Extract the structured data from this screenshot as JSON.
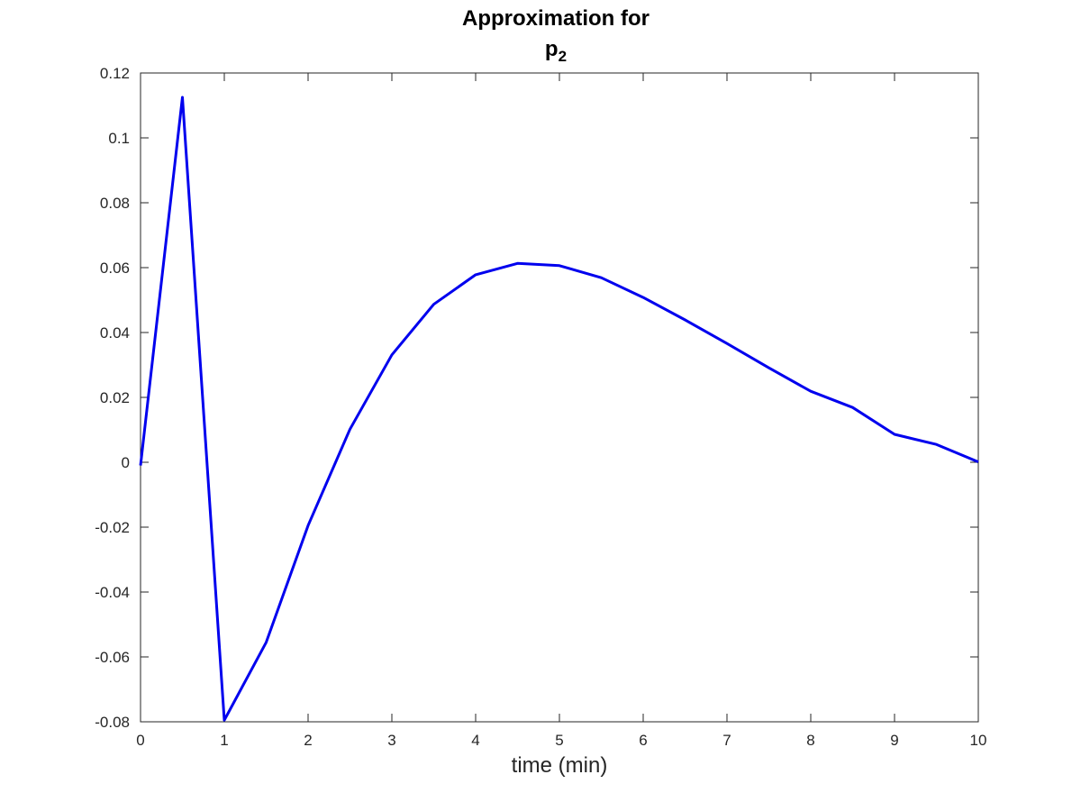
{
  "chart_data": {
    "type": "line",
    "title_main": "Approximation for",
    "title_symbol": "p",
    "title_subscript": "2",
    "xlabel": "time (min)",
    "ylabel": "",
    "xlim": [
      0,
      10
    ],
    "ylim": [
      -0.08,
      0.12
    ],
    "x_ticks": [
      0,
      1,
      2,
      3,
      4,
      5,
      6,
      7,
      8,
      9,
      10
    ],
    "x_tick_labels": [
      "0",
      "1",
      "2",
      "3",
      "4",
      "5",
      "6",
      "7",
      "8",
      "9",
      "10"
    ],
    "y_ticks": [
      -0.08,
      -0.06,
      -0.04,
      -0.02,
      0,
      0.02,
      0.04,
      0.06,
      0.08,
      0.1,
      0.12
    ],
    "y_tick_labels": [
      "-0.08",
      "-0.06",
      "-0.04",
      "-0.02",
      "0",
      "0.02",
      "0.04",
      "0.06",
      "0.08",
      "0.1",
      "0.12"
    ],
    "grid": false,
    "series": [
      {
        "color": "#0000ee",
        "x": [
          0,
          0.5,
          1,
          1.5,
          2,
          2.5,
          3,
          3.5,
          4,
          4.5,
          5,
          5.5,
          6,
          6.5,
          7,
          7.5,
          8,
          8.5,
          9,
          9.5,
          10
        ],
        "y": [
          -0.001,
          0.1125,
          -0.0795,
          -0.0555,
          -0.0195,
          0.0102,
          0.0331,
          0.0487,
          0.0578,
          0.0613,
          0.0606,
          0.0569,
          0.0508,
          0.0439,
          0.0366,
          0.0291,
          0.0219,
          0.0169,
          0.0086,
          0.0055,
          0.0001
        ]
      }
    ]
  }
}
